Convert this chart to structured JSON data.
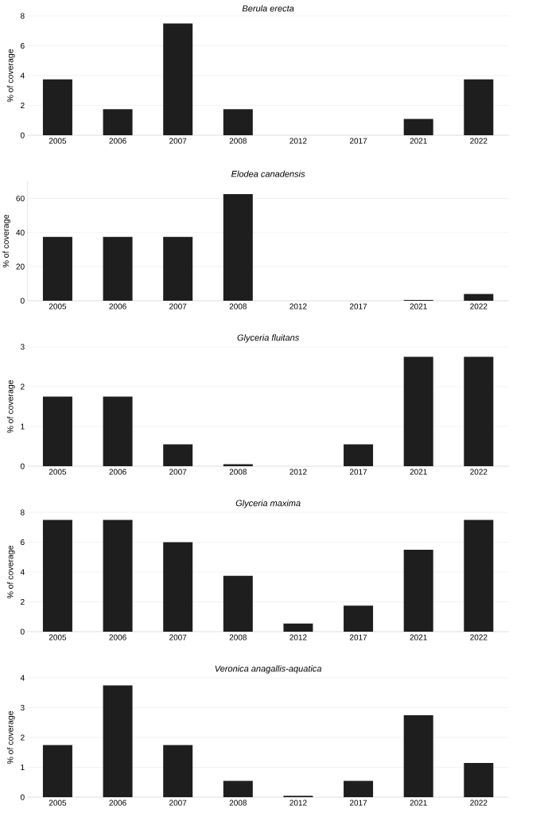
{
  "chart_data": [
    {
      "type": "bar",
      "title": "Berula erecta",
      "ylabel": "% of coverage",
      "categories": [
        "2005",
        "2006",
        "2007",
        "2008",
        "2012",
        "2017",
        "2021",
        "2022"
      ],
      "values": [
        3.75,
        1.75,
        7.5,
        1.75,
        0,
        0,
        1.1,
        3.75
      ],
      "color": "#1e1e1e",
      "ylim": [
        0,
        8
      ],
      "yticks": [
        0,
        2,
        4,
        6,
        8
      ],
      "grid": "y"
    },
    {
      "type": "bar",
      "title": "Elodea canadensis",
      "ylabel": "% of coverage",
      "categories": [
        "2005",
        "2006",
        "2007",
        "2008",
        "2012",
        "2017",
        "2021",
        "2022"
      ],
      "values": [
        37.5,
        37.5,
        37.5,
        62.5,
        0,
        0,
        0.5,
        4
      ],
      "color": "#1e1e1e",
      "ylim": [
        0,
        70
      ],
      "yticks": [
        0,
        20,
        40,
        60
      ],
      "grid": "y"
    },
    {
      "type": "bar",
      "title": "Glyceria fluitans",
      "ylabel": "% of coverage",
      "categories": [
        "2005",
        "2006",
        "2007",
        "2008",
        "2012",
        "2017",
        "2021",
        "2022"
      ],
      "values": [
        1.75,
        1.75,
        0.55,
        0.05,
        0,
        0.55,
        2.75,
        2.75
      ],
      "color": "#1e1e1e",
      "ylim": [
        0,
        3
      ],
      "yticks": [
        0,
        1,
        2,
        3
      ],
      "grid": "y"
    },
    {
      "type": "bar",
      "title": "Glyceria maxima",
      "ylabel": "% of coverage",
      "categories": [
        "2005",
        "2006",
        "2007",
        "2008",
        "2012",
        "2017",
        "2021",
        "2022"
      ],
      "values": [
        7.5,
        7.5,
        6,
        3.75,
        0.55,
        1.75,
        5.5,
        7.5
      ],
      "color": "#1e1e1e",
      "ylim": [
        0,
        8
      ],
      "yticks": [
        0,
        2,
        4,
        6,
        8
      ],
      "grid": "y"
    },
    {
      "type": "bar",
      "title": "Veronica anagallis-aquatica",
      "ylabel": "% of coverage",
      "categories": [
        "2005",
        "2006",
        "2007",
        "2008",
        "2012",
        "2017",
        "2021",
        "2022"
      ],
      "values": [
        1.75,
        3.75,
        1.75,
        0.55,
        0.05,
        0.55,
        2.75,
        1.15
      ],
      "color": "#1e1e1e",
      "ylim": [
        0,
        4
      ],
      "yticks": [
        0,
        1,
        2,
        3,
        4
      ],
      "grid": "y"
    }
  ]
}
